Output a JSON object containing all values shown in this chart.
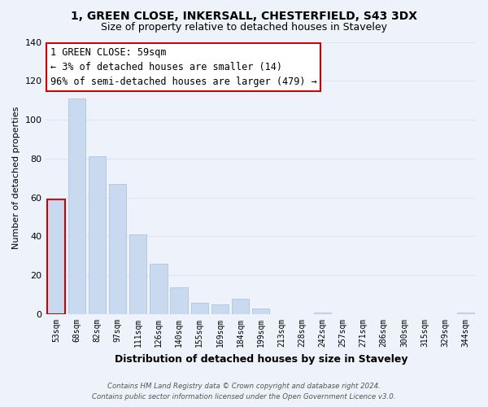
{
  "title1": "1, GREEN CLOSE, INKERSALL, CHESTERFIELD, S43 3DX",
  "title2": "Size of property relative to detached houses in Staveley",
  "xlabel": "Distribution of detached houses by size in Staveley",
  "ylabel": "Number of detached properties",
  "bar_labels": [
    "53sqm",
    "68sqm",
    "82sqm",
    "97sqm",
    "111sqm",
    "126sqm",
    "140sqm",
    "155sqm",
    "169sqm",
    "184sqm",
    "199sqm",
    "213sqm",
    "228sqm",
    "242sqm",
    "257sqm",
    "271sqm",
    "286sqm",
    "300sqm",
    "315sqm",
    "329sqm",
    "344sqm"
  ],
  "bar_values": [
    59,
    111,
    81,
    67,
    41,
    26,
    14,
    6,
    5,
    8,
    3,
    0,
    0,
    1,
    0,
    0,
    0,
    0,
    0,
    0,
    1
  ],
  "bar_color": "#c8d9f0",
  "highlight_bar_index": 0,
  "highlight_edge_color": "#cc0000",
  "normal_edge_color": "#b0c4de",
  "ylim": [
    0,
    140
  ],
  "yticks": [
    0,
    20,
    40,
    60,
    80,
    100,
    120,
    140
  ],
  "annotation_title": "1 GREEN CLOSE: 59sqm",
  "annotation_line1": "← 3% of detached houses are smaller (14)",
  "annotation_line2": "96% of semi-detached houses are larger (479) →",
  "annotation_box_color": "#ffffff",
  "annotation_box_edge": "#cc0000",
  "footer1": "Contains HM Land Registry data © Crown copyright and database right 2024.",
  "footer2": "Contains public sector information licensed under the Open Government Licence v3.0.",
  "grid_color": "#dce6f0",
  "background_color": "#edf2fb"
}
